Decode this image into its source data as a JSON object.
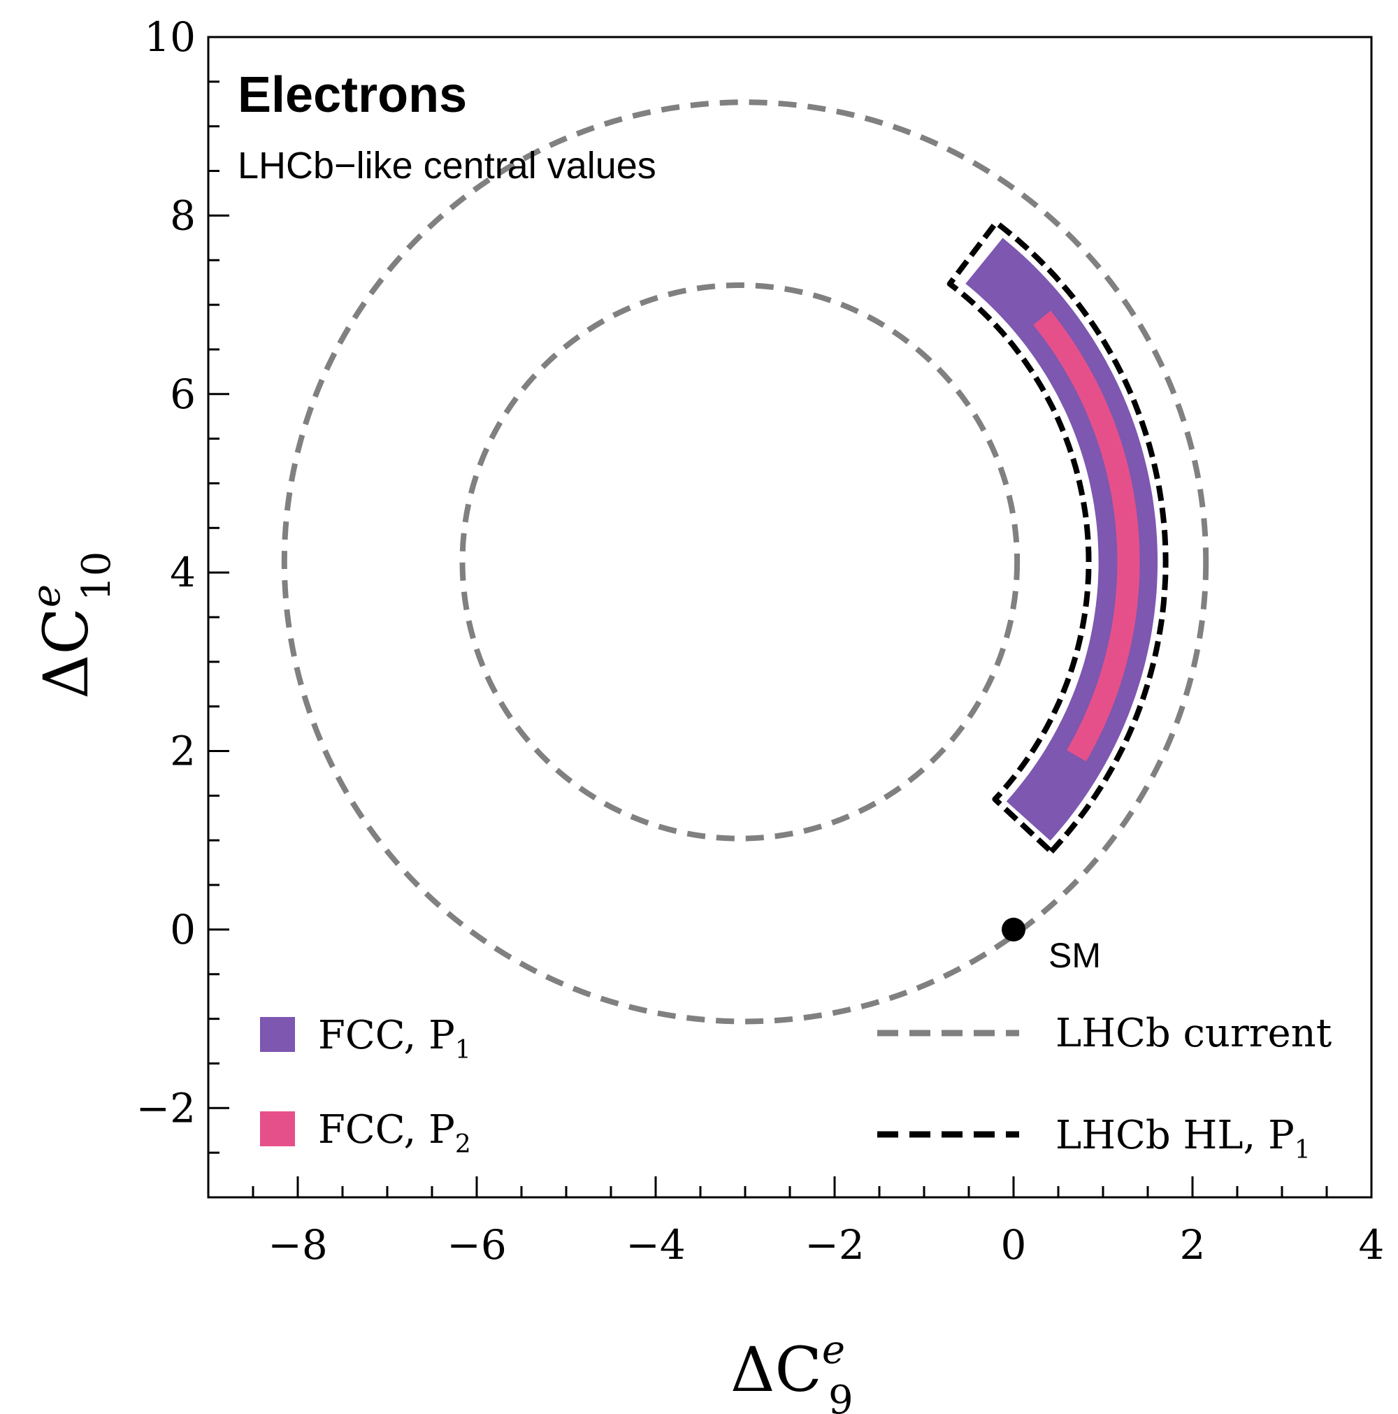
{
  "chart_data": {
    "type": "contour",
    "panel_title": "Electrons",
    "panel_subtitle": "LHCb−like central values",
    "xlabel": {
      "base": "ΔC",
      "sup": "e",
      "sub": "9"
    },
    "ylabel": {
      "base": "ΔC",
      "sup": "e",
      "sub": "10"
    },
    "xlim": [
      -9,
      4
    ],
    "ylim": [
      -3,
      10
    ],
    "x_ticks": [
      {
        "value": -8,
        "label": "−8"
      },
      {
        "value": -6,
        "label": "−6"
      },
      {
        "value": -4,
        "label": "−4"
      },
      {
        "value": -2,
        "label": "−2"
      },
      {
        "value": 0,
        "label": "0"
      },
      {
        "value": 2,
        "label": "2"
      },
      {
        "value": 4,
        "label": "4"
      }
    ],
    "y_ticks": [
      {
        "value": -2,
        "label": "−2"
      },
      {
        "value": 0,
        "label": "0"
      },
      {
        "value": 2,
        "label": "2"
      },
      {
        "value": 4,
        "label": "4"
      },
      {
        "value": 6,
        "label": "6"
      },
      {
        "value": 8,
        "label": "8"
      },
      {
        "value": 10,
        "label": "10"
      }
    ],
    "minor_tick_step": 0.5,
    "series": [
      {
        "name": "FCC, P1",
        "label": {
          "main": "FCC, P",
          "sub": "1"
        },
        "kind": "filled",
        "color": "#7d57b0",
        "center": [
          -3.06,
          4.12
        ],
        "r_inner": 4.01,
        "r_outer": 4.67,
        "theta_start_deg": -42,
        "theta_end_deg": 51
      },
      {
        "name": "FCC, P2",
        "label": {
          "main": "FCC, P",
          "sub": "2"
        },
        "kind": "filled",
        "color": "#e6508a",
        "center": [
          -3.06,
          4.12
        ],
        "r_inner": 4.22,
        "r_outer": 4.47,
        "theta_start_deg": -30,
        "theta_end_deg": 39
      },
      {
        "name": "LHCb current",
        "label": {
          "main": "LHCb current"
        },
        "kind": "dashed-contours",
        "color": "#808080",
        "circles": [
          {
            "cx": -3.0,
            "cy": 4.12,
            "r": 5.15
          },
          {
            "cx": -3.06,
            "cy": 4.12,
            "r": 3.1
          }
        ]
      },
      {
        "name": "LHCb HL, P1",
        "label": {
          "main": "LHCb HL, P",
          "sub": "1"
        },
        "kind": "dashed-contour",
        "color": "#000000",
        "center": [
          -3.06,
          4.12
        ],
        "r_inner": 3.9,
        "r_outer": 4.76,
        "theta_start_deg": -43,
        "theta_end_deg": 53
      }
    ],
    "points": [
      {
        "name": "SM",
        "label": "SM",
        "x": 0,
        "y": 0,
        "color": "#000000"
      }
    ],
    "legend_left_position": "bottom-left",
    "legend_right_position": "bottom-right",
    "grid": false
  }
}
